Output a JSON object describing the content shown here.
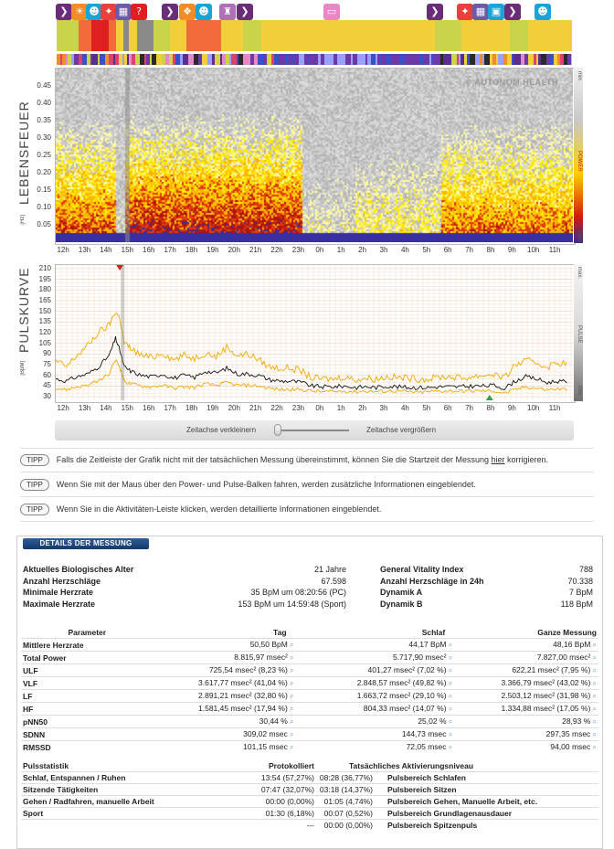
{
  "activity_icons": [
    {
      "name": "sleep-icon",
      "glyph": "❯",
      "color": "#6b2d7a",
      "x": 70
    },
    {
      "name": "sun-icon",
      "glyph": "☀",
      "color": "#f28c28",
      "x": 87
    },
    {
      "name": "person-icon",
      "glyph": "☻",
      "color": "#1aa3d6",
      "x": 103
    },
    {
      "name": "walk-icon",
      "glyph": "✦",
      "color": "#e8403a",
      "x": 119
    },
    {
      "name": "keyboard-icon",
      "glyph": "▦",
      "color": "#6b5aa8",
      "x": 135
    },
    {
      "name": "question-icon",
      "glyph": "?",
      "color": "#e02020",
      "x": 152
    },
    {
      "name": "sleep-icon",
      "glyph": "❯",
      "color": "#6b2d7a",
      "x": 186
    },
    {
      "name": "food-icon",
      "glyph": "❖",
      "color": "#f28c28",
      "x": 205
    },
    {
      "name": "person-icon",
      "glyph": "☻",
      "color": "#1aa3d6",
      "x": 223
    },
    {
      "name": "cart-icon",
      "glyph": "♜",
      "color": "#b070b8",
      "x": 249
    },
    {
      "name": "sleep-icon",
      "glyph": "❯",
      "color": "#6b2d7a",
      "x": 268
    },
    {
      "name": "bed-icon",
      "glyph": "▭",
      "color": "#e887c6",
      "x": 363
    },
    {
      "name": "sleep-icon",
      "glyph": "❯",
      "color": "#6b2d7a",
      "x": 476
    },
    {
      "name": "walk-icon",
      "glyph": "✦",
      "color": "#e8403a",
      "x": 509
    },
    {
      "name": "keyboard-icon",
      "glyph": "▦",
      "color": "#6b5aa8",
      "x": 526
    },
    {
      "name": "computer-icon",
      "glyph": "▣",
      "color": "#1aa3d6",
      "x": 543
    },
    {
      "name": "sleep-icon",
      "glyph": "❯",
      "color": "#6b2d7a",
      "x": 561
    },
    {
      "name": "person-icon",
      "glyph": "☻",
      "color": "#1aa3d6",
      "x": 594
    }
  ],
  "activity_segments": [
    {
      "from": 62,
      "to": 86,
      "color": "#c9d44a"
    },
    {
      "from": 86,
      "to": 100,
      "color": "#f26b3a"
    },
    {
      "from": 100,
      "to": 119,
      "color": "#e02020"
    },
    {
      "from": 119,
      "to": 127,
      "color": "#f26b3a"
    },
    {
      "from": 127,
      "to": 135,
      "color": "#f2cf3a"
    },
    {
      "from": 135,
      "to": 141,
      "color": "#8a8a8a"
    },
    {
      "from": 141,
      "to": 150,
      "color": "#f2cf3a"
    },
    {
      "from": 150,
      "to": 168,
      "color": "#8a8a8a"
    },
    {
      "from": 168,
      "to": 186,
      "color": "#c9d44a"
    },
    {
      "from": 186,
      "to": 204,
      "color": "#f2cf3a"
    },
    {
      "from": 204,
      "to": 222,
      "color": "#f26b3a"
    },
    {
      "from": 222,
      "to": 242,
      "color": "#f26b3a"
    },
    {
      "from": 242,
      "to": 266,
      "color": "#f2cf3a"
    },
    {
      "from": 266,
      "to": 286,
      "color": "#c9d44a"
    },
    {
      "from": 286,
      "to": 476,
      "color": "#f2cf3a"
    },
    {
      "from": 476,
      "to": 505,
      "color": "#c9d44a"
    },
    {
      "from": 505,
      "to": 530,
      "color": "#f2cf3a"
    },
    {
      "from": 530,
      "to": 558,
      "color": "#f2cf3a"
    },
    {
      "from": 558,
      "to": 578,
      "color": "#c9d44a"
    },
    {
      "from": 578,
      "to": 626,
      "color": "#f2cf3a"
    }
  ],
  "watermark": "© AUTONOM HEALTH",
  "spectrogram": {
    "title": "LEBENSFEUER",
    "unit": "[Hz]",
    "yticks": [
      "0.45",
      "0.40",
      "0.35",
      "0.30",
      "0.25",
      "0.20",
      "0.15",
      "0.10",
      "0.05"
    ],
    "legend_top": "min",
    "legend_mid": "POWER",
    "legend_bot": "max"
  },
  "pulse": {
    "title": "PULSKURVE",
    "unit": "[BpM]",
    "yticks": [
      "210",
      "195",
      "180",
      "165",
      "150",
      "135",
      "120",
      "105",
      "90",
      "75",
      "60",
      "45",
      "30"
    ],
    "legend_top": "max.",
    "legend_mid": "PULSE",
    "legend_bot": "min."
  },
  "time_ticks": [
    "12h",
    "13h",
    "14h",
    "15h",
    "16h",
    "17h",
    "18h",
    "19h",
    "20h",
    "21h",
    "22h",
    "23h",
    "0h",
    "1h",
    "2h",
    "3h",
    "4h",
    "5h",
    "6h",
    "7h",
    "8h",
    "9h",
    "10h",
    "11h"
  ],
  "slider": {
    "left_label": "Zeitachse verkleinern",
    "right_label": "Zeitachse vergrößern"
  },
  "tips": [
    {
      "badge": "TIPP",
      "text_before": "Falls die Zeitleiste der Grafik nicht mit der tatsächlichen Messung übereinstimmt, können Sie die Startzeit der Messung ",
      "link": "hier",
      "text_after": " korrigieren."
    },
    {
      "badge": "TIPP",
      "text_before": "Wenn Sie mit der Maus über den Power- und Pulse-Balken fahren, werden zusätzliche Informationen eingeblendet.",
      "link": "",
      "text_after": ""
    },
    {
      "badge": "TIPP",
      "text_before": "Wenn Sie in die Aktivitäten-Leiste klicken, werden detaillierte Informationen eingeblendet.",
      "link": "",
      "text_after": ""
    }
  ],
  "details": {
    "header": "DETAILS DER MESSUNG",
    "left": [
      {
        "label": "Aktuelles Biologisches Alter",
        "value": "21 Jahre"
      },
      {
        "label": "Anzahl Herzschläge",
        "value": "67.598"
      },
      {
        "label": "Minimale Herzrate",
        "value": "35 BpM um 08:20:56 (PC)"
      },
      {
        "label": "Maximale Herzrate",
        "value": "153 BpM um 14:59:48 (Sport)"
      }
    ],
    "right": [
      {
        "label": "General Vitality Index",
        "value": "788"
      },
      {
        "label": "Anzahl Herzschläge in 24h",
        "value": "70.338"
      },
      {
        "label": "Dynamik A",
        "value": "7 BpM"
      },
      {
        "label": "Dynamik B",
        "value": "118 BpM"
      }
    ],
    "param_headers": [
      "Parameter",
      "Tag",
      "Schlaf",
      "Ganze Messung"
    ],
    "params": [
      {
        "name": "Mittlere Herzrate",
        "tag": "50,50 BpM",
        "schlaf": "44,17 BpM",
        "ganz": "48,16 BpM"
      },
      {
        "name": "Total Power",
        "tag": "8.815,97 msec²",
        "schlaf": "5.717,90 msec²",
        "ganz": "7.827,00 msec²"
      },
      {
        "name": "ULF",
        "tag": "725,54 msec² (8,23 %)",
        "schlaf": "401,27 msec² (7,02 %)",
        "ganz": "622,21 msec² (7,95 %)"
      },
      {
        "name": "VLF",
        "tag": "3.617,77 msec² (41,04 %)",
        "schlaf": "2.848,57 msec² (49,82 %)",
        "ganz": "3.366,79 msec² (43,02 %)"
      },
      {
        "name": "LF",
        "tag": "2.891,21 msec² (32,80 %)",
        "schlaf": "1.663,72 msec² (29,10 %)",
        "ganz": "2.503,12 msec² (31,98 %)"
      },
      {
        "name": "HF",
        "tag": "1.581,45 msec² (17,94 %)",
        "schlaf": "804,33 msec² (14,07 %)",
        "ganz": "1.334,88 msec² (17,05 %)"
      },
      {
        "name": "pNN50",
        "tag": "30,44 %",
        "schlaf": "25,02 %",
        "ganz": "28,93 %"
      },
      {
        "name": "SDNN",
        "tag": "309,02 msec",
        "schlaf": "144,73 msec",
        "ganz": "297,35 msec"
      },
      {
        "name": "RMSSD",
        "tag": "101,15 msec",
        "schlaf": "72,05 msec",
        "ganz": "94,00 msec"
      }
    ],
    "stat_headers": [
      "Pulsstatistik",
      "Protokolliert",
      "Tatsächliches Aktivierungsniveau"
    ],
    "stats": [
      {
        "name": "Schlaf, Entspannen / Ruhen",
        "prot": "13:54 (57,27%)",
        "akt": "08:28 (36,77%)",
        "zone": "Pulsbereich Schlafen"
      },
      {
        "name": "Sitzende Tätigkeiten",
        "prot": "07:47 (32,07%)",
        "akt": "03:18 (14,37%)",
        "zone": "Pulsbereich Sitzen"
      },
      {
        "name": "Gehen / Radfahren, manuelle Arbeit",
        "prot": "00:00 (0,00%)",
        "akt": "01:05 (4,74%)",
        "zone": "Pulsbereich Gehen, Manuelle Arbeit, etc."
      },
      {
        "name": "Sport",
        "prot": "01:30 (6,18%)",
        "akt": "00:07 (0,52%)",
        "zone": "Pulsbereich Grundlagenausdauer"
      },
      {
        "name": "",
        "prot": "---",
        "akt": "00:00 (0,00%)",
        "zone": "Pulsbereich Spitzenpuls"
      }
    ]
  },
  "chart_data": [
    {
      "type": "heatmap",
      "title": "LEBENSFEUER",
      "ylabel": "[Hz]",
      "ylim": [
        0,
        0.5
      ],
      "x_ticks": [
        "12h",
        "13h",
        "14h",
        "15h",
        "16h",
        "17h",
        "18h",
        "19h",
        "20h",
        "21h",
        "22h",
        "23h",
        "0h",
        "1h",
        "2h",
        "3h",
        "4h",
        "5h",
        "6h",
        "7h",
        "8h",
        "9h",
        "10h",
        "11h"
      ],
      "legend": [
        "min",
        "POWER",
        "max"
      ],
      "colors": {
        "low": "#b8b8b8",
        "mid": "#ffe600",
        "high": "#c81e0a",
        "base": "#3a2fa0"
      }
    },
    {
      "type": "line",
      "title": "PULSKURVE",
      "ylabel": "[BpM]",
      "ylim": [
        25,
        215
      ],
      "y_ticks": [
        210,
        195,
        180,
        165,
        150,
        135,
        120,
        105,
        90,
        75,
        60,
        45,
        30
      ],
      "x_hours": [
        12,
        12.5,
        13,
        13.5,
        14,
        14.5,
        14.8,
        15,
        15.2,
        15.5,
        16,
        16.5,
        17,
        17.5,
        18,
        18.5,
        19,
        19.5,
        20,
        20.5,
        21,
        21.5,
        22,
        22.5,
        23,
        23.5,
        24,
        24.5,
        25,
        25.5,
        26,
        26.5,
        27,
        27.5,
        28,
        28.5,
        29,
        29.5,
        30,
        30.5,
        31,
        31.5,
        32,
        32.5,
        33,
        33.5,
        34,
        34.5,
        35,
        35.5,
        36
      ],
      "series": [
        {
          "values": [
            55,
            52,
            58,
            62,
            72,
            88,
            112,
            95,
            72,
            66,
            60,
            58,
            62,
            56,
            60,
            57,
            66,
            63,
            70,
            62,
            62,
            60,
            54,
            52,
            52,
            50,
            45,
            44,
            44,
            45,
            43,
            44,
            43,
            45,
            44,
            43,
            43,
            43,
            44,
            44,
            44,
            45,
            45,
            46,
            42,
            52,
            58,
            55,
            50,
            52,
            50
          ]
        },
        {
          "values": [
            80,
            72,
            88,
            102,
            120,
            130,
            150,
            140,
            105,
            98,
            88,
            85,
            92,
            82,
            88,
            84,
            92,
            86,
            100,
            88,
            90,
            82,
            72,
            70,
            70,
            66,
            56,
            55,
            55,
            58,
            54,
            56,
            55,
            58,
            57,
            56,
            55,
            55,
            58,
            58,
            56,
            58,
            60,
            62,
            56,
            75,
            80,
            78,
            72,
            78,
            76
          ]
        },
        {
          "values": [
            42,
            40,
            44,
            46,
            52,
            62,
            82,
            72,
            52,
            48,
            45,
            44,
            46,
            42,
            44,
            43,
            48,
            46,
            50,
            46,
            46,
            45,
            42,
            40,
            40,
            40,
            38,
            37,
            37,
            38,
            37,
            38,
            37,
            38,
            38,
            37,
            36,
            37,
            38,
            38,
            38,
            38,
            38,
            38,
            35,
            40,
            44,
            42,
            40,
            41,
            40
          ]
        }
      ],
      "markers": {
        "max_hour": 15.0,
        "min_hour": 32.3
      },
      "colors": {
        "mean": "#111111",
        "band": "#f5a800",
        "grid": "#f0dcc8"
      }
    }
  ]
}
